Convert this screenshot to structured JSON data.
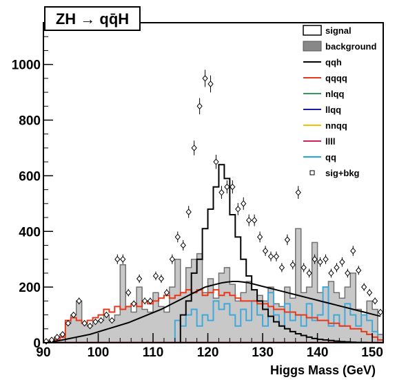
{
  "chart_data": {
    "type": "histogram",
    "title": "ZH → qq̄H",
    "xlabel": "Higgs Mass (GeV)",
    "ylabel": "",
    "xlim": [
      90,
      152
    ],
    "ylim": [
      0,
      1150
    ],
    "xticks": [
      90,
      100,
      110,
      120,
      130,
      140,
      150
    ],
    "yticks": [
      0,
      200,
      400,
      600,
      800,
      1000
    ],
    "bin_width": 1,
    "legend_position": "top-right",
    "legend": [
      {
        "name": "signal",
        "kind": "box-outline",
        "color": "#000000"
      },
      {
        "name": "background",
        "kind": "box-filled",
        "color": "#888888"
      },
      {
        "name": "qqh",
        "kind": "line",
        "color": "#000000"
      },
      {
        "name": "qqqq",
        "kind": "line",
        "color": "#e8371a"
      },
      {
        "name": "nlqq",
        "kind": "line",
        "color": "#2f9a5c"
      },
      {
        "name": "llqq",
        "kind": "line",
        "color": "#1a1aa8"
      },
      {
        "name": "nnqq",
        "kind": "line",
        "color": "#f2c200"
      },
      {
        "name": "llll",
        "kind": "line",
        "color": "#cc2255"
      },
      {
        "name": "qq",
        "kind": "line",
        "color": "#22aacc"
      },
      {
        "name": "sig+bkg",
        "kind": "marker",
        "color": "#000000"
      }
    ],
    "colors": {
      "signal": "#000000",
      "background_fill": "#c8c8c8",
      "background_line": "#707070",
      "qqh": "#000000",
      "qqqq": "#e8371a",
      "qq": "#3fa9dc",
      "llll": "#cc2255"
    },
    "series": {
      "signal": {
        "start": 90,
        "values": [
          0,
          0,
          0,
          0,
          0,
          0,
          0,
          0,
          0,
          0,
          0,
          0,
          0,
          0,
          0,
          0,
          0,
          0,
          0,
          0,
          0,
          0,
          0,
          0,
          0,
          100,
          150,
          250,
          300,
          410,
          480,
          560,
          640,
          590,
          460,
          380,
          300,
          240,
          190,
          150,
          120,
          95,
          75,
          60,
          50,
          40,
          32,
          26,
          20,
          15,
          12,
          10,
          8,
          6,
          4,
          3,
          2,
          1,
          1,
          0,
          0,
          0
        ]
      },
      "background": {
        "start": 90,
        "values": [
          5,
          10,
          20,
          30,
          70,
          100,
          150,
          70,
          60,
          75,
          80,
          100,
          80,
          100,
          280,
          130,
          110,
          200,
          120,
          110,
          180,
          130,
          110,
          200,
          300,
          180,
          270,
          300,
          320,
          180,
          230,
          160,
          250,
          270,
          210,
          150,
          180,
          220,
          190,
          170,
          150,
          200,
          140,
          130,
          200,
          160,
          410,
          180,
          200,
          360,
          180,
          200,
          220,
          180,
          160,
          200,
          250,
          120,
          100,
          150,
          120,
          30
        ]
      },
      "qqqq": {
        "start": 90,
        "values": [
          2,
          5,
          10,
          20,
          80,
          90,
          80,
          70,
          80,
          90,
          100,
          120,
          110,
          130,
          120,
          130,
          140,
          130,
          150,
          140,
          150,
          160,
          170,
          160,
          170,
          180,
          190,
          180,
          190,
          170,
          180,
          190,
          170,
          180,
          170,
          160,
          150,
          150,
          150,
          140,
          140,
          130,
          120,
          120,
          110,
          110,
          100,
          100,
          90,
          90,
          80,
          80,
          70,
          70,
          60,
          60,
          50,
          50,
          40,
          30,
          20,
          10
        ]
      },
      "qq": {
        "start": 90,
        "values": [
          0,
          0,
          0,
          0,
          0,
          0,
          0,
          0,
          0,
          0,
          0,
          0,
          0,
          0,
          0,
          0,
          0,
          0,
          0,
          0,
          0,
          0,
          0,
          0,
          80,
          60,
          100,
          120,
          60,
          100,
          80,
          150,
          120,
          140,
          100,
          60,
          120,
          80,
          150,
          100,
          60,
          180,
          100,
          60,
          140,
          80,
          100,
          60,
          140,
          80,
          100,
          200,
          60,
          100,
          60,
          140,
          100,
          60,
          100,
          80,
          40,
          0
        ]
      },
      "qqh": {
        "start": 90,
        "values": [
          1,
          3,
          6,
          10,
          14,
          18,
          22,
          26,
          30,
          36,
          42,
          48,
          54,
          60,
          66,
          72,
          80,
          88,
          96,
          104,
          112,
          120,
          130,
          140,
          150,
          160,
          170,
          180,
          190,
          200,
          205,
          210,
          215,
          218,
          220,
          220,
          218,
          215,
          210,
          205,
          200,
          195,
          190,
          185,
          180,
          175,
          170,
          165,
          160,
          155,
          150,
          145,
          140,
          135,
          130,
          125,
          120,
          115,
          110,
          105,
          100,
          95
        ]
      },
      "llll": {
        "start": 90,
        "values": [
          2,
          2,
          2,
          2,
          2,
          2,
          2,
          2,
          2,
          2,
          2,
          2,
          2,
          2,
          2,
          2,
          2,
          2,
          2,
          2,
          2,
          2,
          2,
          2,
          2,
          2,
          2,
          2,
          2,
          2,
          2,
          2,
          2,
          2,
          2,
          2,
          2,
          2,
          2,
          2,
          2,
          2,
          2,
          2,
          2,
          2,
          2,
          2,
          2,
          2,
          2,
          2,
          2,
          2,
          2,
          2,
          2,
          2,
          2,
          2,
          2,
          2
        ]
      },
      "sig_bkg": {
        "start": 90,
        "values": [
          5,
          10,
          20,
          30,
          70,
          100,
          150,
          70,
          60,
          75,
          80,
          100,
          80,
          300,
          300,
          180,
          140,
          230,
          150,
          150,
          240,
          230,
          180,
          300,
          380,
          350,
          470,
          700,
          850,
          950,
          930,
          650,
          540,
          560,
          560,
          480,
          500,
          440,
          440,
          380,
          330,
          310,
          310,
          270,
          370,
          280,
          540,
          270,
          250,
          300,
          290,
          300,
          250,
          270,
          290,
          250,
          330,
          260,
          200,
          180,
          150,
          110
        ]
      }
    }
  }
}
